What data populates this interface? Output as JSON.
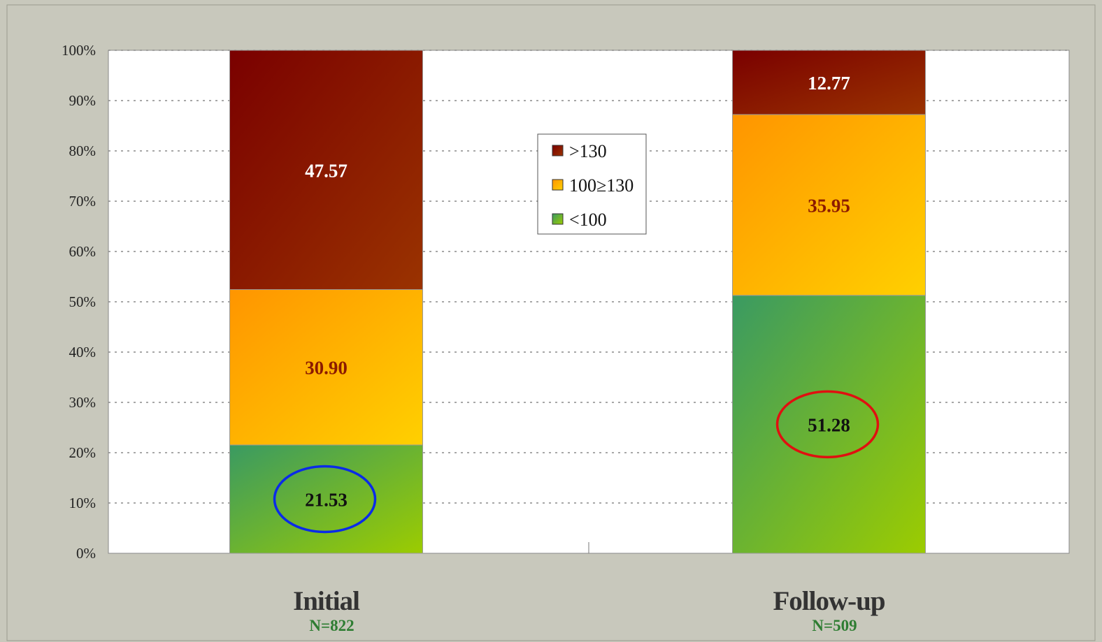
{
  "chart_data": {
    "type": "bar",
    "stacked": true,
    "categories": [
      "Initial",
      "Follow-up"
    ],
    "category_notes": [
      "N=822",
      "N=509"
    ],
    "series": [
      {
        "name": "<100",
        "values": [
          21.53,
          51.28
        ],
        "label_color": "#111111",
        "colors": [
          "#3a9a62",
          "#9ccc00"
        ]
      },
      {
        "name": "100≥130",
        "values": [
          30.9,
          35.95
        ],
        "label_color": "#8b1a00",
        "colors": [
          "#ff9500",
          "#ffd000"
        ]
      },
      {
        "name": ">130",
        "values": [
          47.57,
          12.77
        ],
        "label_color": "#ffffff",
        "colors": [
          "#7a0000",
          "#9a3300"
        ]
      }
    ],
    "yticks": [
      "0%",
      "10%",
      "20%",
      "30%",
      "40%",
      "50%",
      "60%",
      "70%",
      "80%",
      "90%",
      "100%"
    ],
    "ylim": [
      0,
      100
    ],
    "grid": true,
    "legend_position": "center-top",
    "legend_order": [
      ">130",
      "100≥130",
      "<100"
    ],
    "highlights": [
      {
        "category": "Initial",
        "series": "<100",
        "color": "#0a2be8"
      },
      {
        "category": "Follow-up",
        "series": "<100",
        "color": "#e01010"
      }
    ]
  }
}
